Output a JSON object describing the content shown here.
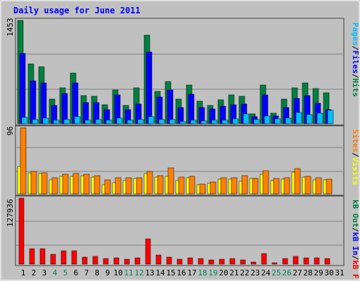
{
  "title": "Daily usage for June 2011",
  "colors": {
    "background": "#c0c0c0",
    "title": "#0000ff",
    "frame_dark": "#404040",
    "frame_light": "#ffffff",
    "grid": "#7f7f7f",
    "hits": "#008040",
    "files": "#0000ff",
    "pages": "#00c0ff",
    "visits": "#ffff00",
    "sites": "#ff8000",
    "kbout": "#008040",
    "kbin": "#0000ff",
    "kbf": "#ff0000",
    "day_weekday": "#000000",
    "day_weekend": "#00805c"
  },
  "chart_data": [
    {
      "type": "bar",
      "panel": "hits",
      "ymax": 1453,
      "ymax_label": "1453",
      "legend": [
        {
          "label": "Hits",
          "color": "#008040"
        },
        {
          "label": "Files",
          "color": "#0000ff"
        },
        {
          "label": "Pages",
          "color": "#00c0ff"
        }
      ],
      "series": [
        {
          "name": "Hits",
          "values": [
            1453,
            845,
            805,
            350,
            505,
            715,
            400,
            385,
            270,
            475,
            255,
            505,
            1245,
            455,
            590,
            345,
            540,
            320,
            255,
            335,
            410,
            385,
            135,
            545,
            150,
            350,
            505,
            570,
            490,
            435
          ]
        },
        {
          "name": "Files",
          "values": [
            990,
            605,
            575,
            255,
            425,
            575,
            300,
            300,
            195,
            405,
            195,
            280,
            1005,
            380,
            470,
            230,
            420,
            225,
            210,
            245,
            270,
            280,
            95,
            410,
            110,
            225,
            360,
            400,
            290,
            195
          ]
        },
        {
          "name": "Pages",
          "values": [
            90,
            55,
            75,
            50,
            55,
            100,
            50,
            60,
            45,
            75,
            50,
            60,
            100,
            60,
            55,
            30,
            50,
            40,
            50,
            50,
            65,
            135,
            60,
            110,
            70,
            80,
            160,
            125,
            145,
            190
          ]
        }
      ]
    },
    {
      "type": "bar",
      "panel": "visits",
      "ymax": 96,
      "ymax_label": "96",
      "legend": [
        {
          "label": "Visits",
          "color": "#ffff00"
        },
        {
          "label": "Sites",
          "color": "#ff8000"
        }
      ],
      "series": [
        {
          "name": "Visits",
          "values": [
            40,
            31,
            30,
            20,
            26,
            26,
            27,
            25,
            13,
            16,
            19,
            22,
            30,
            25,
            26,
            19,
            23,
            13,
            15,
            21,
            21,
            18,
            22,
            29,
            19,
            21,
            32,
            25,
            20,
            20
          ]
        },
        {
          "name": "Sites",
          "values": [
            96,
            33,
            31,
            23,
            29,
            30,
            29,
            27,
            20,
            23,
            23,
            23,
            33,
            27,
            38,
            24,
            26,
            14,
            17,
            23,
            23,
            27,
            22,
            34,
            22,
            23,
            37,
            26,
            23,
            21
          ]
        }
      ]
    },
    {
      "type": "bar",
      "panel": "kbytes",
      "ymax": 127936,
      "ymax_label": "127936",
      "legend": [
        {
          "label": "kB F",
          "color": "#ff0000"
        },
        {
          "label": "kB In",
          "color": "#0000ff"
        },
        {
          "label": "kB Out",
          "color": "#008040"
        }
      ],
      "series": [
        {
          "name": "kB F",
          "values": [
            127936,
            30000,
            29500,
            19500,
            25500,
            26500,
            14000,
            14500,
            11500,
            12000,
            10000,
            12000,
            49500,
            17500,
            13500,
            10000,
            12000,
            10500,
            8500,
            9500,
            11000,
            8500,
            4500,
            20000,
            2500,
            11000,
            15000,
            12500,
            12500,
            11000
          ]
        }
      ]
    }
  ],
  "x_axis": {
    "labels": [
      "1",
      "2",
      "3",
      "4",
      "5",
      "6",
      "7",
      "8",
      "9",
      "10",
      "11",
      "12",
      "13",
      "14",
      "15",
      "16",
      "17",
      "18",
      "19",
      "20",
      "21",
      "22",
      "23",
      "24",
      "25",
      "26",
      "27",
      "28",
      "29",
      "30",
      "31"
    ],
    "weekend_days": [
      4,
      5,
      11,
      12,
      18,
      19,
      25,
      26
    ]
  }
}
